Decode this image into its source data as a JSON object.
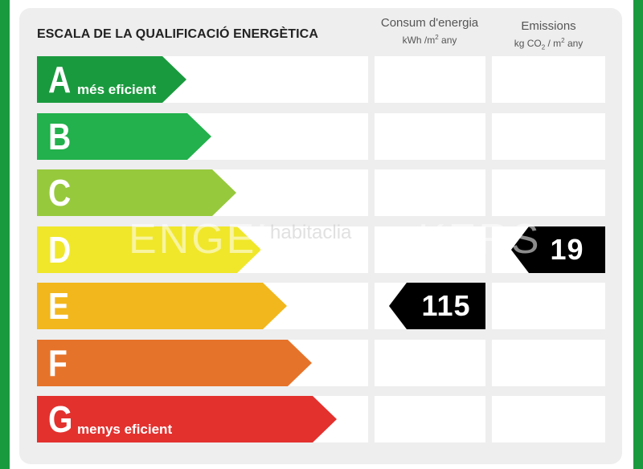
{
  "title": "ESCALA DE LA QUALIFICACIÓ ENERGÈTICA",
  "columns": {
    "consumption": {
      "line1": "Consum d'energia",
      "line2_pre": "kWh /m",
      "line2_sup": "2",
      "line2_post": " any"
    },
    "emissions": {
      "line1": "Emissions",
      "line2_pre": "kg CO",
      "line2_sub": "2",
      "line2_mid": " / m",
      "line2_sup": "2",
      "line2_post": " any"
    }
  },
  "ratings": [
    {
      "letter": "A",
      "label": "més eficient",
      "color": "#1a9a3e"
    },
    {
      "letter": "B",
      "label": "",
      "color": "#22b14c"
    },
    {
      "letter": "C",
      "label": "",
      "color": "#97c93d"
    },
    {
      "letter": "D",
      "label": "",
      "color": "#f0e72a"
    },
    {
      "letter": "E",
      "label": "",
      "color": "#f2b71c"
    },
    {
      "letter": "F",
      "label": "",
      "color": "#e6732a"
    },
    {
      "letter": "G",
      "label": "menys eficient",
      "color": "#e3312e"
    }
  ],
  "result": {
    "consumption": {
      "value": "115",
      "rating": "E"
    },
    "emissions": {
      "value": "19",
      "rating": "D"
    }
  },
  "watermark": {
    "text1": "ENGEL",
    "text2": "habitaclia",
    "text3": "KERS"
  }
}
